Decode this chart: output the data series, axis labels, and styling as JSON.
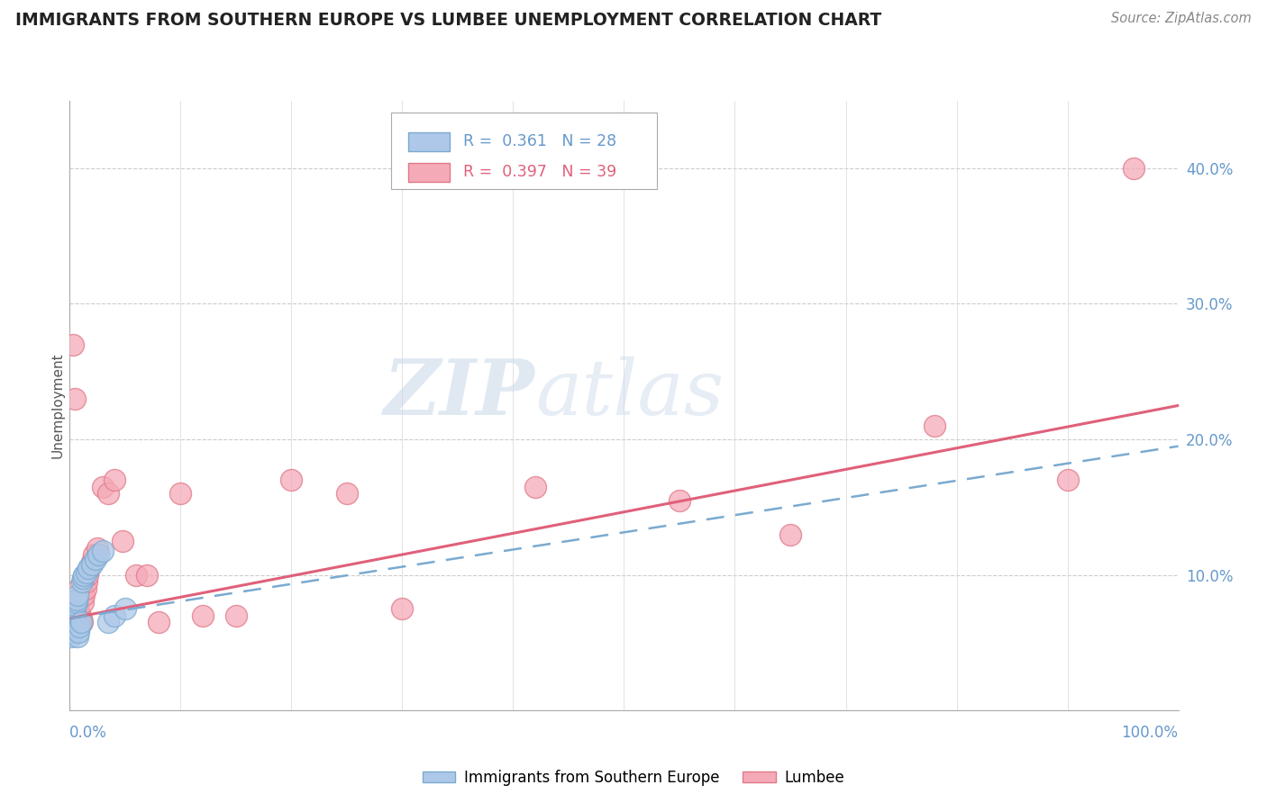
{
  "title": "IMMIGRANTS FROM SOUTHERN EUROPE VS LUMBEE UNEMPLOYMENT CORRELATION CHART",
  "source": "Source: ZipAtlas.com",
  "ylabel": "Unemployment",
  "blue_R": "0.361",
  "blue_N": "28",
  "pink_R": "0.397",
  "pink_N": "39",
  "legend_label_blue": "Immigrants from Southern Europe",
  "legend_label_pink": "Lumbee",
  "blue_color": "#adc8e8",
  "pink_color": "#f5aab8",
  "blue_edge_color": "#7aaad0",
  "pink_edge_color": "#e07888",
  "blue_line_color": "#7aaad0",
  "pink_line_color": "#e0607a",
  "axis_tick_color": "#6699cc",
  "watermark_zip": "ZIP",
  "watermark_atlas": "atlas",
  "ylim": [
    0,
    0.45
  ],
  "xlim": [
    0,
    1.0
  ],
  "blue_scatter_x": [
    0.001,
    0.002,
    0.002,
    0.003,
    0.003,
    0.004,
    0.004,
    0.005,
    0.005,
    0.006,
    0.006,
    0.007,
    0.007,
    0.008,
    0.009,
    0.01,
    0.011,
    0.012,
    0.013,
    0.015,
    0.017,
    0.02,
    0.023,
    0.026,
    0.03,
    0.035,
    0.04,
    0.05
  ],
  "blue_scatter_y": [
    0.055,
    0.058,
    0.062,
    0.065,
    0.068,
    0.07,
    0.073,
    0.075,
    0.078,
    0.08,
    0.082,
    0.085,
    0.055,
    0.058,
    0.062,
    0.065,
    0.095,
    0.098,
    0.1,
    0.102,
    0.105,
    0.108,
    0.112,
    0.115,
    0.118,
    0.065,
    0.07,
    0.075
  ],
  "pink_scatter_x": [
    0.001,
    0.002,
    0.003,
    0.004,
    0.005,
    0.006,
    0.007,
    0.008,
    0.009,
    0.01,
    0.011,
    0.012,
    0.013,
    0.014,
    0.015,
    0.016,
    0.018,
    0.02,
    0.022,
    0.025,
    0.03,
    0.035,
    0.04,
    0.048,
    0.06,
    0.07,
    0.08,
    0.1,
    0.12,
    0.15,
    0.2,
    0.25,
    0.3,
    0.42,
    0.55,
    0.65,
    0.78,
    0.9,
    0.96
  ],
  "pink_scatter_y": [
    0.065,
    0.068,
    0.27,
    0.065,
    0.23,
    0.07,
    0.08,
    0.09,
    0.072,
    0.068,
    0.065,
    0.08,
    0.085,
    0.09,
    0.095,
    0.1,
    0.105,
    0.11,
    0.115,
    0.12,
    0.165,
    0.16,
    0.17,
    0.125,
    0.1,
    0.1,
    0.065,
    0.16,
    0.07,
    0.07,
    0.17,
    0.16,
    0.075,
    0.165,
    0.155,
    0.13,
    0.21,
    0.17,
    0.4
  ],
  "pink_trend_x0": 0.0,
  "pink_trend_y0": 0.068,
  "pink_trend_x1": 1.0,
  "pink_trend_y1": 0.225,
  "blue_trend_x0": 0.0,
  "blue_trend_y0": 0.068,
  "blue_trend_x1": 1.0,
  "blue_trend_y1": 0.195
}
